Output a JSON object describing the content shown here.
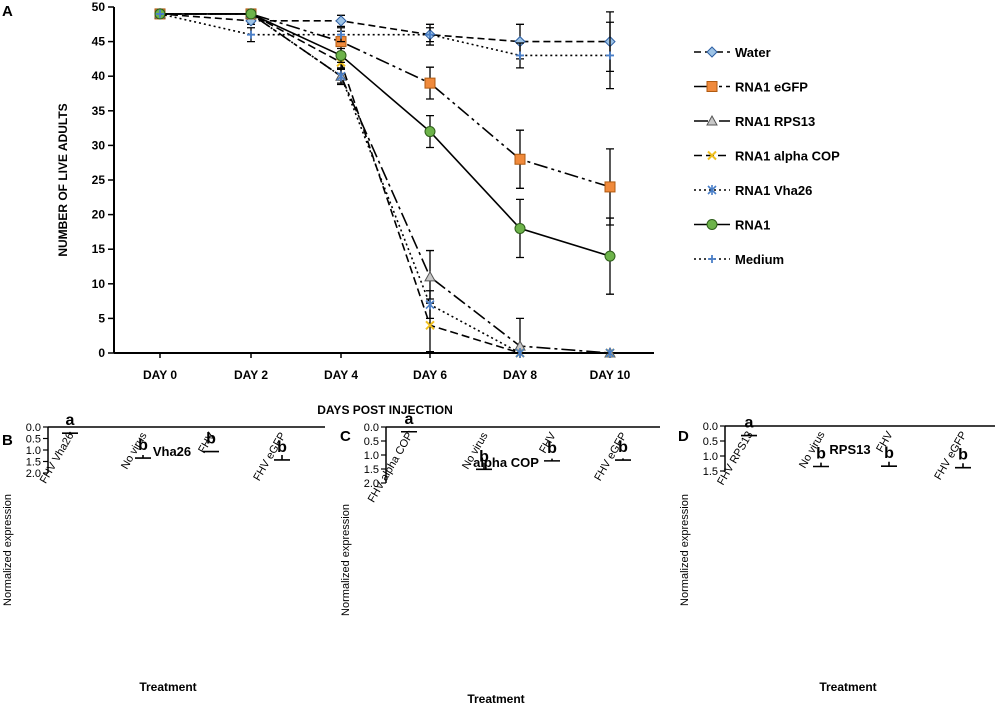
{
  "chart_data": [
    {
      "panel": "A",
      "type": "line",
      "title": "",
      "xlabel": "DAYS POST INJECTION",
      "ylabel": "NUMBER OF LIVE ADULTS",
      "categories": [
        "DAY 0",
        "DAY 2",
        "DAY 4",
        "DAY 6",
        "DAY 8",
        "DAY 10"
      ],
      "ylim": [
        0,
        50
      ],
      "yticks": [
        0,
        5,
        10,
        15,
        20,
        25,
        30,
        35,
        40,
        45,
        50
      ],
      "legend_position": "right",
      "series": [
        {
          "name": "Water",
          "marker": "diamond",
          "color": "#9dc3e6",
          "stroke": "#2e5fa3",
          "dash": "7,4",
          "values": [
            49,
            48,
            48,
            46,
            45,
            45
          ],
          "errors": [
            0,
            0.5,
            0.8,
            1.5,
            2.5,
            4.3
          ]
        },
        {
          "name": "RNA1 eGFP",
          "marker": "square",
          "color": "#f08a3c",
          "stroke": "#b05a10",
          "dash": "14,4,3,4,3,4",
          "values": [
            49,
            49,
            45,
            39,
            28,
            24
          ],
          "errors": [
            0,
            0,
            1.5,
            2.3,
            4.2,
            5.5
          ]
        },
        {
          "name": "RNA1 RPS13",
          "marker": "triangle",
          "color": "#c8c8c8",
          "stroke": "#555555",
          "dash": "14,4,3,4",
          "values": [
            49,
            49,
            40,
            11,
            1,
            0
          ],
          "errors": [
            0,
            0,
            1.2,
            3.8,
            4.0,
            0
          ]
        },
        {
          "name": "RNA1 alpha COP",
          "marker": "x",
          "color": "#f0c020",
          "stroke": "#f0c020",
          "dash": "8,4",
          "values": [
            49,
            49,
            42,
            4,
            0,
            0
          ],
          "errors": [
            0,
            0,
            1.0,
            3.8,
            0,
            0
          ]
        },
        {
          "name": "RNA1 Vha26",
          "marker": "star",
          "color": "#4a7fc8",
          "stroke": "#4a7fc8",
          "dash": "2,3",
          "values": [
            49,
            49,
            40,
            7,
            0,
            0
          ],
          "errors": [
            0,
            0,
            1.0,
            2.0,
            0,
            0
          ]
        },
        {
          "name": "RNA1",
          "marker": "circle",
          "color": "#6db34a",
          "stroke": "#2e5e1a",
          "dash": "",
          "values": [
            49,
            49,
            43,
            32,
            18,
            14
          ],
          "errors": [
            0,
            0,
            1.0,
            2.3,
            4.2,
            5.5
          ]
        },
        {
          "name": "Medium",
          "marker": "plus",
          "color": "#4a7fc8",
          "stroke": "#4a7fc8",
          "dash": "2,3",
          "values": [
            49,
            46,
            46,
            46,
            43,
            43
          ],
          "errors": [
            0,
            1.0,
            1.0,
            1.0,
            1.8,
            4.8
          ]
        }
      ]
    },
    {
      "panel": "B",
      "type": "bar",
      "title": "Vha26",
      "xlabel": "Treatment",
      "ylabel": "Normalized expression",
      "categories": [
        "FHV Vha26",
        "No virus",
        "FHV",
        "FHV eGFP"
      ],
      "values": [
        0.21,
        1.22,
        1.04,
        1.22
      ],
      "errors": [
        0.06,
        0.13,
        0.03,
        0.21
      ],
      "letters": [
        "a",
        "b",
        "b",
        "b"
      ],
      "patterns": [
        "check",
        "check",
        "hstripe",
        "vstripe"
      ],
      "ylim": [
        0,
        2.0
      ],
      "yticks": [
        "0.0",
        "0.5",
        "1.0",
        "1.5",
        "2.0"
      ]
    },
    {
      "panel": "C",
      "type": "bar",
      "title": "alpha COP",
      "xlabel": "Treatment",
      "ylabel": "Normalized expression",
      "categories": [
        "FHV alpha COP",
        "No virus",
        "FHV",
        "FHV eGFP"
      ],
      "values": [
        0.14,
        1.27,
        1.13,
        1.12
      ],
      "errors": [
        0.03,
        0.24,
        0.08,
        0.06
      ],
      "letters": [
        "a",
        "b",
        "b",
        "b"
      ],
      "patterns": [
        "check",
        "check",
        "hstripe",
        "vstripe"
      ],
      "ylim": [
        0,
        2.0
      ],
      "yticks": [
        "0.0",
        "0.5",
        "1.0",
        "1.5",
        "2.0"
      ]
    },
    {
      "panel": "D",
      "type": "bar",
      "title": "RPS13",
      "xlabel": "Treatment",
      "ylabel": "Normalized expression",
      "categories": [
        "FHV RPS13",
        "No virus",
        "FHV",
        "FHV eGFP"
      ],
      "values": [
        0.26,
        1.22,
        1.19,
        1.24
      ],
      "errors": [
        0.06,
        0.13,
        0.15,
        0.15
      ],
      "letters": [
        "a",
        "b",
        "b",
        "b"
      ],
      "patterns": [
        "check",
        "check",
        "hstripe",
        "vstripe"
      ],
      "ylim": [
        0,
        1.5
      ],
      "yticks": [
        "0.0",
        "0.5",
        "1.0",
        "1.5"
      ]
    }
  ],
  "panel_labels": [
    "A",
    "B",
    "C",
    "D"
  ]
}
